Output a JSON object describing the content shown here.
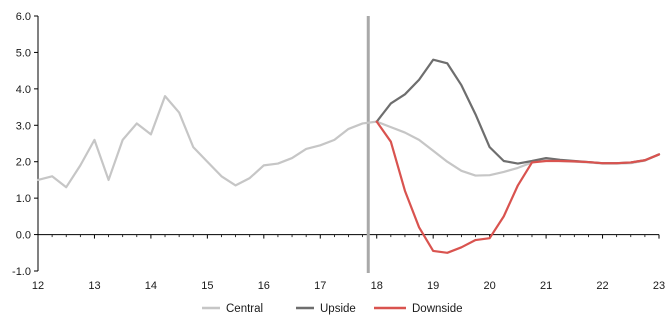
{
  "chart_data": {
    "type": "line",
    "title": "",
    "xlabel": "",
    "ylabel": "",
    "xlim": [
      12,
      23
    ],
    "ylim": [
      -1.0,
      6.0
    ],
    "x_ticks": [
      12,
      13,
      14,
      15,
      16,
      17,
      18,
      19,
      20,
      21,
      22,
      23
    ],
    "x_tick_labels": [
      "12",
      "13",
      "14",
      "15",
      "16",
      "17",
      "18",
      "19",
      "20",
      "21",
      "22",
      "23"
    ],
    "y_ticks": [
      -1.0,
      0.0,
      1.0,
      2.0,
      3.0,
      4.0,
      5.0,
      6.0
    ],
    "y_tick_labels": [
      "-1.0",
      "0.0",
      "1.0",
      "2.0",
      "3.0",
      "4.0",
      "5.0",
      "6.0"
    ],
    "grid": false,
    "legend_position": "bottom",
    "forecast_start_line_x": 17.85,
    "series": [
      {
        "name": "Central",
        "color": "#c6c6c6",
        "points": [
          [
            12.0,
            1.5
          ],
          [
            12.25,
            1.6
          ],
          [
            12.5,
            1.3
          ],
          [
            12.75,
            1.9
          ],
          [
            13.0,
            2.6
          ],
          [
            13.25,
            1.5
          ],
          [
            13.5,
            2.6
          ],
          [
            13.75,
            3.05
          ],
          [
            14.0,
            2.75
          ],
          [
            14.25,
            3.8
          ],
          [
            14.5,
            3.35
          ],
          [
            14.75,
            2.4
          ],
          [
            15.0,
            2.0
          ],
          [
            15.25,
            1.6
          ],
          [
            15.5,
            1.35
          ],
          [
            15.75,
            1.55
          ],
          [
            16.0,
            1.9
          ],
          [
            16.25,
            1.95
          ],
          [
            16.5,
            2.1
          ],
          [
            16.75,
            2.35
          ],
          [
            17.0,
            2.45
          ],
          [
            17.25,
            2.6
          ],
          [
            17.5,
            2.9
          ],
          [
            17.75,
            3.05
          ],
          [
            18.0,
            3.1
          ],
          [
            18.25,
            2.95
          ],
          [
            18.5,
            2.8
          ],
          [
            18.75,
            2.6
          ],
          [
            19.0,
            2.3
          ],
          [
            19.25,
            2.0
          ],
          [
            19.5,
            1.75
          ],
          [
            19.75,
            1.62
          ],
          [
            20.0,
            1.63
          ],
          [
            20.25,
            1.72
          ],
          [
            20.5,
            1.83
          ],
          [
            20.75,
            1.98
          ],
          [
            21.0,
            2.05
          ],
          [
            21.25,
            2.02
          ],
          [
            21.5,
            2.0
          ],
          [
            21.75,
            1.98
          ],
          [
            22.0,
            1.95
          ],
          [
            22.25,
            1.95
          ],
          [
            22.5,
            1.96
          ],
          [
            22.75,
            2.03
          ],
          [
            23.0,
            2.2
          ]
        ]
      },
      {
        "name": "Upside",
        "color": "#6e6e6e",
        "points": [
          [
            18.0,
            3.1
          ],
          [
            18.25,
            3.6
          ],
          [
            18.5,
            3.85
          ],
          [
            18.75,
            4.25
          ],
          [
            19.0,
            4.8
          ],
          [
            19.25,
            4.7
          ],
          [
            19.5,
            4.1
          ],
          [
            19.75,
            3.3
          ],
          [
            20.0,
            2.4
          ],
          [
            20.25,
            2.02
          ],
          [
            20.5,
            1.95
          ],
          [
            20.75,
            2.02
          ],
          [
            21.0,
            2.1
          ],
          [
            21.25,
            2.05
          ],
          [
            21.5,
            2.02
          ],
          [
            21.75,
            1.99
          ],
          [
            22.0,
            1.96
          ],
          [
            22.25,
            1.96
          ],
          [
            22.5,
            1.98
          ],
          [
            22.75,
            2.04
          ],
          [
            23.0,
            2.2
          ]
        ]
      },
      {
        "name": "Downside",
        "color": "#d9534f",
        "points": [
          [
            18.0,
            3.1
          ],
          [
            18.25,
            2.55
          ],
          [
            18.5,
            1.2
          ],
          [
            18.75,
            0.2
          ],
          [
            19.0,
            -0.45
          ],
          [
            19.25,
            -0.5
          ],
          [
            19.5,
            -0.35
          ],
          [
            19.75,
            -0.15
          ],
          [
            20.0,
            -0.1
          ],
          [
            20.25,
            0.5
          ],
          [
            20.5,
            1.35
          ],
          [
            20.75,
            1.98
          ],
          [
            21.0,
            2.02
          ],
          [
            21.25,
            2.02
          ],
          [
            21.5,
            2.01
          ],
          [
            21.75,
            1.99
          ],
          [
            22.0,
            1.96
          ],
          [
            22.25,
            1.96
          ],
          [
            22.5,
            1.98
          ],
          [
            22.75,
            2.04
          ],
          [
            23.0,
            2.2
          ]
        ]
      }
    ]
  }
}
